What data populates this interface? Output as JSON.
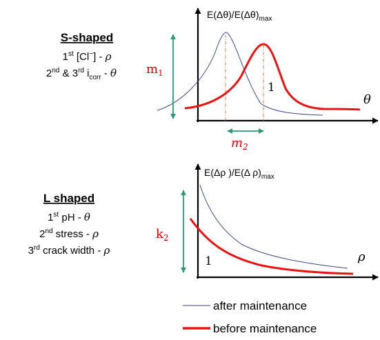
{
  "colors": {
    "after_curve": "#3a4a86",
    "before_curve": "#ee1111",
    "arrow_green": "#2a9a72",
    "dash_orange": "#d0804a",
    "label_red": "#e00000"
  },
  "s_panel": {
    "title": "S-shaped",
    "line1": {
      "ord": "1",
      "sup": "st",
      "rest": " [Cl",
      "minus": "−",
      "close": "] - ",
      "symbol": "ρ"
    },
    "line2": {
      "ord": "2",
      "sup": "nd",
      "mid": " & 3",
      "sup2": "rd",
      "rest": " i",
      "sub": "corr",
      "dash": " - ",
      "symbol": "θ"
    },
    "ylabel": {
      "main": "E(Δθ)/E(Δθ)",
      "sub": "max"
    },
    "xlabel": "θ",
    "m1": {
      "main": "m",
      "sub": "1"
    },
    "m2": {
      "main": "m",
      "sub": "2"
    },
    "one": "1"
  },
  "l_panel": {
    "title": "L shaped",
    "line1": {
      "ord": "1",
      "sup": "st",
      "rest": " pH - ",
      "symbol": "θ"
    },
    "line2": {
      "ord": "2",
      "sup": "nd",
      "rest": " stress - ",
      "symbol": "ρ"
    },
    "line3": {
      "ord": "3",
      "sup": "rd",
      "rest": " crack width - ",
      "symbol": "ρ"
    },
    "ylabel": {
      "main": "E(Δρ )/E(Δ ρ)",
      "sub": "max"
    },
    "xlabel": "ρ",
    "k2": {
      "main": "k",
      "sub": "2"
    },
    "one": "1"
  },
  "legend": {
    "after_label": "after maintenance",
    "before_label": "before maintenance"
  }
}
